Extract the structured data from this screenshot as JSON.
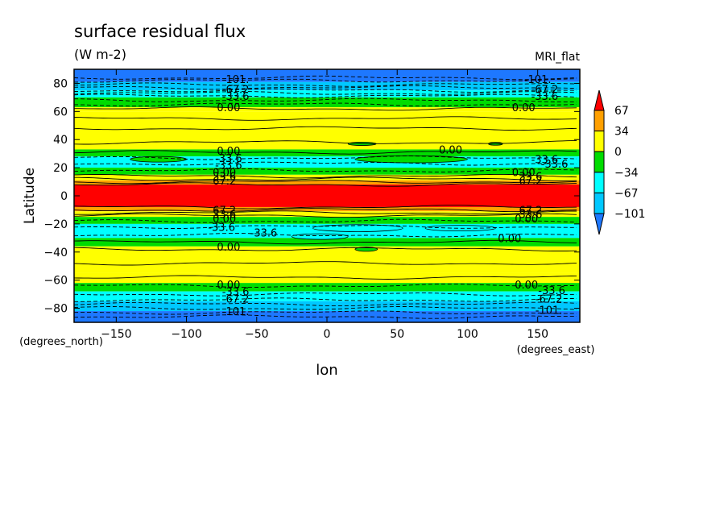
{
  "chart_data": {
    "type": "heatmap",
    "title": "surface residual flux",
    "units": "(W m-2)",
    "model_label": "MRI_flat",
    "xlabel": "lon",
    "ylabel": "Latitude",
    "x_units": "(degrees_east)",
    "y_units": "(degrees_north)",
    "xlim": [
      -180,
      180
    ],
    "ylim": [
      -90,
      90
    ],
    "xticks": [
      -150,
      -100,
      -50,
      0,
      50,
      100,
      150
    ],
    "yticks": [
      -80,
      -60,
      -40,
      -20,
      0,
      20,
      40,
      60,
      80
    ],
    "colorbar": {
      "labels": [
        "67",
        "34",
        "0",
        "-34",
        "-67",
        "-101"
      ],
      "levels": [
        -101,
        -67,
        -34,
        0,
        34,
        67
      ],
      "colors": {
        "below_min": "#1e78ff",
        "lt_-101": "#1e78ff",
        "-101_-67": "#00c8ff",
        "-67_-34": "#00ffff",
        "-34_0": "#00dc00",
        "0_34": "#ffff00",
        "34_67": "#ffa000",
        "gt_67": "#ff0000"
      }
    },
    "zonal_bands": [
      {
        "lat": [
          81,
          90
        ],
        "color": "#1e78ff"
      },
      {
        "lat": [
          75,
          81
        ],
        "color": "#00c8ff"
      },
      {
        "lat": [
          70,
          75
        ],
        "color": "#00ffff"
      },
      {
        "lat": [
          63,
          70
        ],
        "color": "#00dc00"
      },
      {
        "lat": [
          60,
          63
        ],
        "color": "#ffff00"
      },
      {
        "lat": [
          33,
          60
        ],
        "color": "#ffff00"
      },
      {
        "lat": [
          28,
          33
        ],
        "color": "#00dc00"
      },
      {
        "lat": [
          20,
          28
        ],
        "color": "#00ffff"
      },
      {
        "lat": [
          15,
          20
        ],
        "color": "#00dc00"
      },
      {
        "lat": [
          11,
          15
        ],
        "color": "#ffff00"
      },
      {
        "lat": [
          8,
          11
        ],
        "color": "#ffa000"
      },
      {
        "lat": [
          -8,
          8
        ],
        "color": "#ff0000"
      },
      {
        "lat": [
          -11,
          -8
        ],
        "color": "#ffa000"
      },
      {
        "lat": [
          -15,
          -11
        ],
        "color": "#ffff00"
      },
      {
        "lat": [
          -20,
          -15
        ],
        "color": "#00dc00"
      },
      {
        "lat": [
          -30,
          -20
        ],
        "color": "#00ffff"
      },
      {
        "lat": [
          -36,
          -30
        ],
        "color": "#00dc00"
      },
      {
        "lat": [
          -55,
          -36
        ],
        "color": "#ffff00"
      },
      {
        "lat": [
          -62,
          -55
        ],
        "color": "#ffff00"
      },
      {
        "lat": [
          -68,
          -62
        ],
        "color": "#00dc00"
      },
      {
        "lat": [
          -75,
          -68
        ],
        "color": "#00ffff"
      },
      {
        "lat": [
          -82,
          -75
        ],
        "color": "#00c8ff"
      },
      {
        "lat": [
          -90,
          -82
        ],
        "color": "#1e78ff"
      }
    ],
    "contour_lines": [
      {
        "lat": 84,
        "dash": true
      },
      {
        "lat": 82,
        "dash": true
      },
      {
        "lat": 79,
        "dash": true
      },
      {
        "lat": 77,
        "dash": true
      },
      {
        "lat": 75,
        "dash": true
      },
      {
        "lat": 73,
        "dash": true
      },
      {
        "lat": 71,
        "dash": true
      },
      {
        "lat": 68,
        "dash": true
      },
      {
        "lat": 65,
        "dash": true
      },
      {
        "lat": 62,
        "dash": false
      },
      {
        "lat": 55,
        "dash": false
      },
      {
        "lat": 48,
        "dash": false
      },
      {
        "lat": 38,
        "dash": false
      },
      {
        "lat": 31,
        "dash": false
      },
      {
        "lat": 27,
        "dash": true
      },
      {
        "lat": 23,
        "dash": true
      },
      {
        "lat": 18,
        "dash": true
      },
      {
        "lat": 14,
        "dash": false
      },
      {
        "lat": 12,
        "dash": false
      },
      {
        "lat": 10,
        "dash": false
      },
      {
        "lat": 8,
        "dash": false
      },
      {
        "lat": -8,
        "dash": false
      },
      {
        "lat": -10,
        "dash": false
      },
      {
        "lat": -12,
        "dash": false
      },
      {
        "lat": -14,
        "dash": false
      },
      {
        "lat": -18,
        "dash": true
      },
      {
        "lat": -22,
        "dash": true
      },
      {
        "lat": -28,
        "dash": true
      },
      {
        "lat": -33,
        "dash": false
      },
      {
        "lat": -38,
        "dash": false
      },
      {
        "lat": -48,
        "dash": false
      },
      {
        "lat": -58,
        "dash": false
      },
      {
        "lat": -64,
        "dash": true
      },
      {
        "lat": -70,
        "dash": true
      },
      {
        "lat": -74,
        "dash": true
      },
      {
        "lat": -77,
        "dash": true
      },
      {
        "lat": -80,
        "dash": true
      },
      {
        "lat": -83,
        "dash": true
      },
      {
        "lat": -86,
        "dash": true
      }
    ],
    "contour_labels": [
      {
        "text": "-101.",
        "lon": -65,
        "lat": 83
      },
      {
        "text": "-67.2",
        "lon": -65,
        "lat": 76
      },
      {
        "text": "-33.6",
        "lon": -65,
        "lat": 71
      },
      {
        "text": "0.00",
        "lon": -70,
        "lat": 63
      },
      {
        "text": "-101.",
        "lon": 150,
        "lat": 83
      },
      {
        "text": "-67.2",
        "lon": 155,
        "lat": 76
      },
      {
        "text": "-33.6",
        "lon": 155,
        "lat": 71
      },
      {
        "text": "0.00",
        "lon": 140,
        "lat": 63
      },
      {
        "text": "0.00",
        "lon": -70,
        "lat": 32
      },
      {
        "text": "-33.6",
        "lon": -70,
        "lat": 27
      },
      {
        "text": "-33.6",
        "lon": -70,
        "lat": 22
      },
      {
        "text": "0.00",
        "lon": 88,
        "lat": 33
      },
      {
        "text": "-33.6",
        "lon": 155,
        "lat": 26
      },
      {
        "text": "-33.6",
        "lon": 162,
        "lat": 23
      },
      {
        "text": "0.00",
        "lon": -73,
        "lat": 17
      },
      {
        "text": "33.6",
        "lon": -73,
        "lat": 14
      },
      {
        "text": "67.2",
        "lon": -73,
        "lat": 11
      },
      {
        "text": "0.00",
        "lon": 140,
        "lat": 17
      },
      {
        "text": "33.6",
        "lon": 145,
        "lat": 14
      },
      {
        "text": "67.2",
        "lon": 145,
        "lat": 11
      },
      {
        "text": "67.2",
        "lon": -73,
        "lat": -10
      },
      {
        "text": "33.6",
        "lon": -73,
        "lat": -13
      },
      {
        "text": "0.00",
        "lon": -73,
        "lat": -16
      },
      {
        "text": "67.2",
        "lon": 145,
        "lat": -10
      },
      {
        "text": "33.6",
        "lon": 145,
        "lat": -13
      },
      {
        "text": "0.00",
        "lon": 142,
        "lat": -16
      },
      {
        "text": "-33.6",
        "lon": -75,
        "lat": -22
      },
      {
        "text": "-33.6",
        "lon": -45,
        "lat": -26
      },
      {
        "text": "0.00",
        "lon": 130,
        "lat": -30
      },
      {
        "text": "0.00",
        "lon": -70,
        "lat": -36
      },
      {
        "text": "0.00",
        "lon": -70,
        "lat": -63
      },
      {
        "text": "-33.6",
        "lon": -65,
        "lat": -68
      },
      {
        "text": "-67.2",
        "lon": -65,
        "lat": -73
      },
      {
        "text": "-101.",
        "lon": -65,
        "lat": -82
      },
      {
        "text": "0.00",
        "lon": 142,
        "lat": -63
      },
      {
        "text": "-33.6",
        "lon": 160,
        "lat": -67
      },
      {
        "text": "-67.2",
        "lon": 158,
        "lat": -73
      },
      {
        "text": "-101.",
        "lon": 158,
        "lat": -81
      }
    ],
    "patches": [
      {
        "lon": 22,
        "lat": -23,
        "rlon": 32,
        "rlat": 2.5,
        "color": "#00ffff"
      },
      {
        "lon": 95,
        "lat": -23,
        "rlon": 25,
        "rlat": 2,
        "color": "#00ffff"
      },
      {
        "lon": -5,
        "lat": -29,
        "rlon": 20,
        "rlat": 2,
        "color": "#00ffff"
      },
      {
        "lon": 28,
        "lat": -38,
        "rlon": 8,
        "rlat": 1.5,
        "color": "#00dc00"
      },
      {
        "lon": 25,
        "lat": 37,
        "rlon": 10,
        "rlat": 1.2,
        "color": "#00dc00"
      },
      {
        "lon": 120,
        "lat": 37,
        "rlon": 5,
        "rlat": 1,
        "color": "#00dc00"
      },
      {
        "lon": 60,
        "lat": 26,
        "rlon": 40,
        "rlat": 2.5,
        "color": "#00dc00"
      },
      {
        "lon": -120,
        "lat": 26,
        "rlon": 20,
        "rlat": 2,
        "color": "#00dc00"
      }
    ]
  }
}
